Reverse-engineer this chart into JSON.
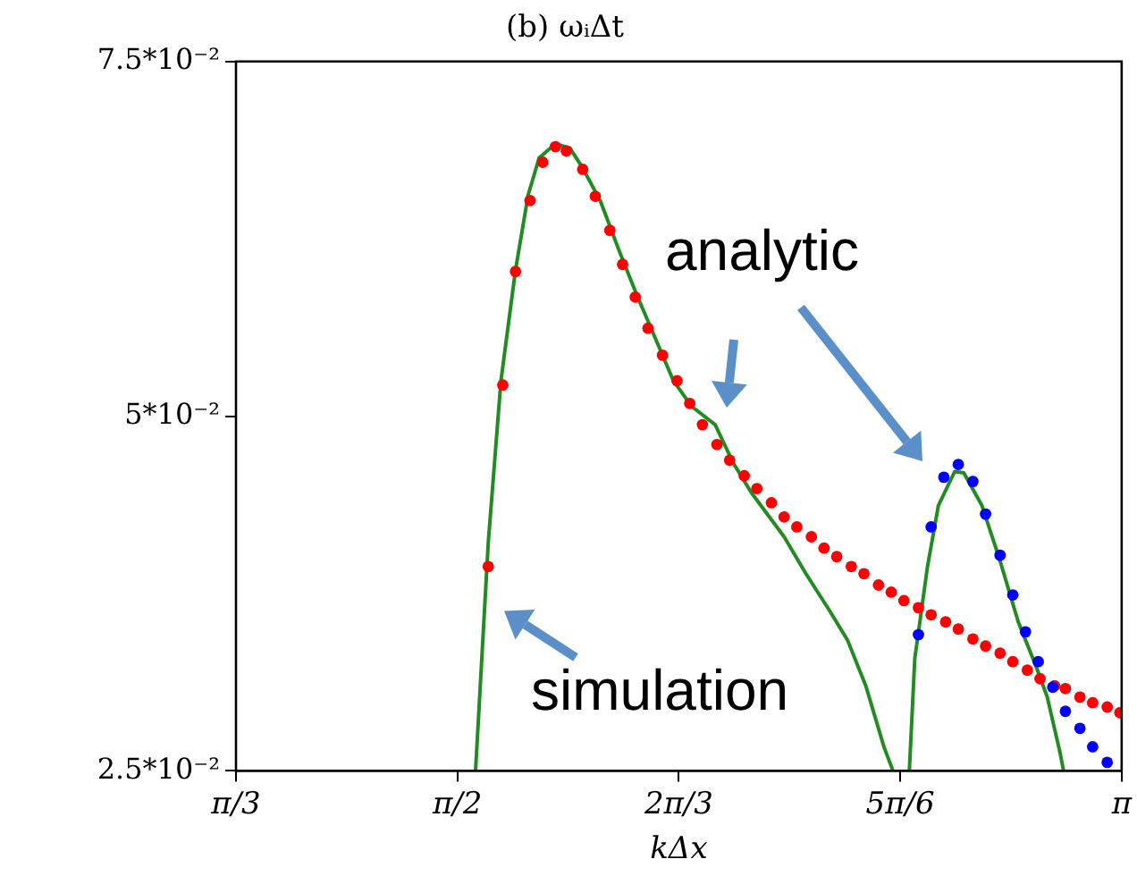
{
  "chart_data": {
    "type": "scatter",
    "title": "(b) ωᵢΔt",
    "xlabel": "kΔx",
    "xlim": [
      1.0472,
      3.1416
    ],
    "xticks": [
      {
        "value": 1.0472,
        "label": "π/3"
      },
      {
        "value": 1.5708,
        "label": "π/2"
      },
      {
        "value": 2.0944,
        "label": "2π/3"
      },
      {
        "value": 2.618,
        "label": "5π/6"
      },
      {
        "value": 3.1416,
        "label": "π"
      }
    ],
    "ylim": [
      0.025,
      0.075
    ],
    "yticks": [
      {
        "value": 0.025,
        "label": "2.5*10⁻²"
      },
      {
        "value": 0.05,
        "label": "5*10⁻²"
      },
      {
        "value": 0.075,
        "label": "7.5*10⁻²"
      }
    ],
    "grid": false,
    "legend": false,
    "annotations": [
      "analytic",
      "simulation"
    ],
    "series": [
      {
        "type": "line",
        "color": "#228b22",
        "marker": "none",
        "line_style": "solid",
        "x": [
          1.6137,
          1.6438,
          1.6738,
          1.7082,
          1.7382,
          1.764,
          1.8026,
          1.8369,
          1.867,
          1.9099,
          1.9528,
          1.9957,
          2.0387,
          2.0816,
          2.1245,
          2.1803,
          2.2232,
          2.2661,
          2.3434,
          2.3949,
          2.4507,
          2.4936,
          2.5365,
          2.5794,
          2.6009,
          2.62,
          2.6395,
          2.6524,
          2.6825,
          2.7082,
          2.7468,
          2.7683,
          2.8112,
          2.8541,
          2.8971,
          2.94,
          2.9657,
          2.9958,
          3.0043
        ],
        "values": [
          0.025,
          0.0411,
          0.0525,
          0.0603,
          0.0656,
          0.0682,
          0.0692,
          0.0689,
          0.0675,
          0.0651,
          0.0617,
          0.0585,
          0.0555,
          0.0525,
          0.0507,
          0.0494,
          0.0467,
          0.0446,
          0.0415,
          0.0389,
          0.0363,
          0.0342,
          0.031,
          0.0267,
          0.025,
          null,
          0.025,
          0.0329,
          0.0394,
          0.0437,
          0.0461,
          0.046,
          0.0437,
          0.0398,
          0.0355,
          0.0323,
          0.0302,
          0.0263,
          0.025
        ]
      },
      {
        "type": "scatter",
        "color": "#ff0000",
        "marker": "circle",
        "x": [
          1.6438,
          1.6781,
          1.7082,
          1.7425,
          1.7725,
          1.8026,
          1.8283,
          1.867,
          1.897,
          1.9314,
          1.9614,
          1.9914,
          2.0215,
          2.0558,
          2.0902,
          2.1202,
          2.1502,
          2.1846,
          2.2146,
          2.249,
          2.279,
          2.3133,
          2.3434,
          2.3734,
          2.4078,
          2.4378,
          2.4679,
          2.5022,
          2.5322,
          2.5666,
          2.5966,
          2.6267,
          2.661,
          2.691,
          2.7254,
          2.7554,
          2.7898,
          2.8198,
          2.8541,
          2.8842,
          2.9185,
          2.9486,
          2.9829,
          3.0086,
          3.043,
          3.073,
          3.1074,
          3.1374
        ],
        "values": [
          0.0394,
          0.0522,
          0.0602,
          0.0652,
          0.0679,
          0.069,
          0.0687,
          0.0674,
          0.0655,
          0.0631,
          0.0607,
          0.0584,
          0.0562,
          0.0543,
          0.0525,
          0.0509,
          0.0494,
          0.048,
          0.0469,
          0.0458,
          0.0449,
          0.0439,
          0.0429,
          0.0422,
          0.0415,
          0.0407,
          0.0401,
          0.0394,
          0.0389,
          0.0381,
          0.0376,
          0.037,
          0.0365,
          0.036,
          0.0355,
          0.035,
          0.0343,
          0.0338,
          0.0333,
          0.0327,
          0.0321,
          0.0315,
          0.031,
          0.0308,
          0.0302,
          0.0298,
          0.0295,
          0.0291
        ]
      },
      {
        "type": "scatter",
        "color": "#0000ff",
        "marker": "circle",
        "x": [
          2.661,
          2.691,
          2.7211,
          2.7554,
          2.7898,
          2.8198,
          2.8541,
          2.8842,
          2.9142,
          2.9443,
          2.9786,
          3.0086,
          3.043,
          3.073,
          3.1074
        ],
        "values": [
          0.0346,
          0.0422,
          0.0457,
          0.0466,
          0.0454,
          0.0431,
          0.0402,
          0.0374,
          0.0348,
          0.0327,
          0.0309,
          0.0292,
          0.028,
          0.0267,
          0.0256
        ]
      }
    ]
  }
}
